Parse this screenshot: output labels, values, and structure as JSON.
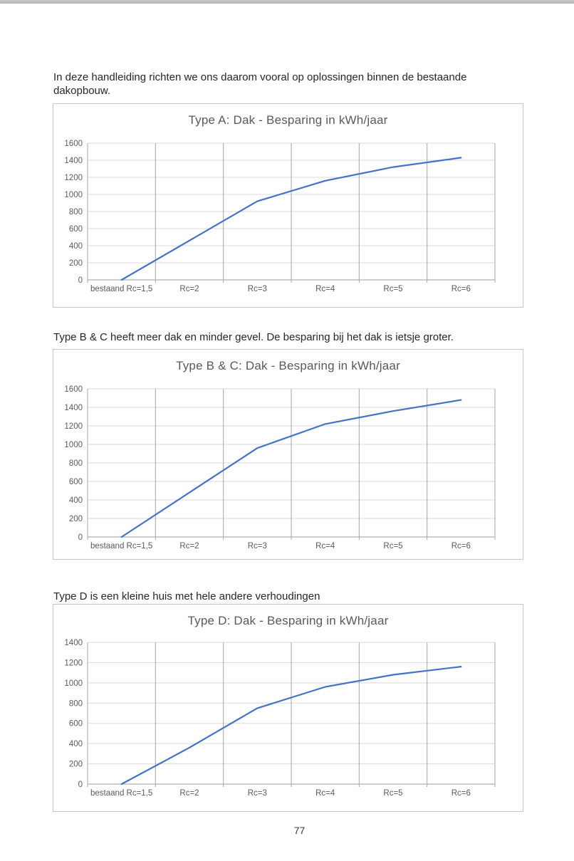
{
  "page": {
    "paragraph1": "In deze handleiding richten we ons daarom vooral op oplossingen binnen de bestaande dakopbouw.",
    "paragraph2": "Type B & C heeft meer dak en minder gevel. De besparing bij het dak is ietsje groter.",
    "paragraph3": "Type D is een kleine huis met hele andere verhoudingen",
    "page_number": "77"
  },
  "colors": {
    "line": "#4472C4",
    "grid_horizontal": "#d9d9d9",
    "grid_vertical": "#a6a6a6",
    "axis_line": "#9b9b9b",
    "axis_text": "#595959",
    "chart_border": "#c6c6c6"
  },
  "chart_data": [
    {
      "type": "line",
      "title": "Type A: Dak - Besparing in kWh/jaar",
      "categories": [
        "bestaand Rc=1,5",
        "Rc=2",
        "Rc=3",
        "Rc=4",
        "Rc=5",
        "Rc=6"
      ],
      "values": [
        0,
        460,
        920,
        1160,
        1320,
        1430
      ],
      "xlabel": "",
      "ylabel": "",
      "ylim": [
        0,
        1600
      ],
      "ytick_step": 200,
      "grid": true,
      "legend": "none"
    },
    {
      "type": "line",
      "title": "Type B & C: Dak - Besparing in kWh/jaar",
      "categories": [
        "bestaand Rc=1,5",
        "Rc=2",
        "Rc=3",
        "Rc=4",
        "Rc=5",
        "Rc=6"
      ],
      "values": [
        0,
        480,
        960,
        1220,
        1360,
        1480
      ],
      "xlabel": "",
      "ylabel": "",
      "ylim": [
        0,
        1600
      ],
      "ytick_step": 200,
      "grid": true,
      "legend": "none"
    },
    {
      "type": "line",
      "title": "Type D: Dak - Besparing in kWh/jaar",
      "categories": [
        "bestaand Rc=1,5",
        "Rc=2",
        "Rc=3",
        "Rc=4",
        "Rc=5",
        "Rc=6"
      ],
      "values": [
        0,
        360,
        750,
        960,
        1080,
        1160
      ],
      "xlabel": "",
      "ylabel": "",
      "ylim": [
        0,
        1400
      ],
      "ytick_step": 200,
      "grid": true,
      "legend": "none"
    }
  ]
}
